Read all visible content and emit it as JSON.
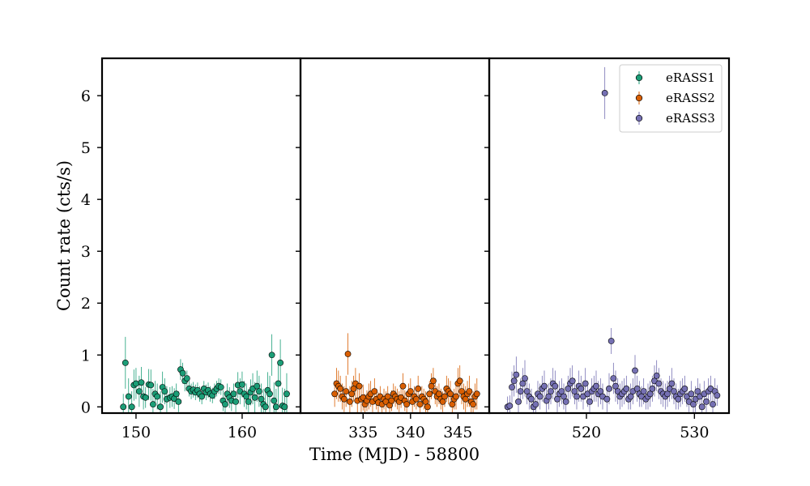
{
  "chart_data": {
    "type": "scatter",
    "xlabel": "Time (MJD) - 58800",
    "ylabel": "Count rate (cts/s)",
    "ylim": [
      -0.12,
      6.72
    ],
    "yticks": [
      0,
      1,
      2,
      3,
      4,
      5,
      6
    ],
    "grid": false,
    "legend_position": "top-right",
    "legend": [
      "eRASS1",
      "eRASS2",
      "eRASS3"
    ],
    "panels": [
      {
        "xlim": [
          146.8,
          165.5
        ],
        "xticks": [
          150,
          160
        ],
        "series": {
          "name": "eRASS1",
          "color": "#1b9e77",
          "x": [
            148.8,
            149.0,
            149.3,
            149.6,
            149.8,
            150.0,
            150.3,
            150.5,
            150.7,
            150.9,
            151.2,
            151.4,
            151.6,
            151.8,
            152.0,
            152.3,
            152.5,
            152.7,
            152.9,
            153.2,
            153.4,
            153.6,
            153.8,
            154.0,
            154.2,
            154.4,
            154.6,
            154.8,
            155.0,
            155.2,
            155.4,
            155.6,
            155.8,
            156.0,
            156.2,
            156.4,
            156.6,
            156.8,
            157.0,
            157.2,
            157.4,
            157.6,
            157.8,
            158.0,
            158.2,
            158.4,
            158.6,
            158.8,
            159.0,
            159.2,
            159.4,
            159.6,
            159.8,
            160.0,
            160.2,
            160.4,
            160.6,
            160.8,
            161.0,
            161.2,
            161.4,
            161.6,
            161.8,
            162.0,
            162.2,
            162.4,
            162.6,
            162.8,
            163.0,
            163.2,
            163.4,
            163.6,
            163.8,
            164.0,
            164.2
          ],
          "y": [
            0.0,
            0.85,
            0.2,
            0.0,
            0.42,
            0.45,
            0.3,
            0.47,
            0.2,
            0.18,
            0.43,
            0.42,
            0.05,
            0.25,
            0.2,
            0.0,
            0.38,
            0.3,
            0.15,
            0.18,
            0.2,
            0.16,
            0.25,
            0.1,
            0.72,
            0.65,
            0.5,
            0.55,
            0.35,
            0.3,
            0.33,
            0.28,
            0.32,
            0.25,
            0.2,
            0.35,
            0.28,
            0.32,
            0.25,
            0.22,
            0.3,
            0.35,
            0.4,
            0.38,
            0.12,
            0.05,
            0.25,
            0.18,
            0.12,
            0.25,
            0.1,
            0.42,
            0.3,
            0.43,
            0.25,
            0.2,
            0.1,
            0.28,
            0.35,
            0.18,
            0.4,
            0.3,
            0.15,
            0.05,
            0.0,
            0.32,
            0.25,
            1.0,
            0.12,
            0.0,
            0.45,
            0.85,
            0.02,
            0.0,
            0.25
          ],
          "err": [
            0.25,
            0.5,
            0.35,
            0.3,
            0.3,
            0.3,
            0.3,
            0.3,
            0.25,
            0.2,
            0.3,
            0.3,
            0.3,
            0.25,
            0.25,
            0.3,
            0.3,
            0.25,
            0.25,
            0.2,
            0.2,
            0.2,
            0.2,
            0.2,
            0.2,
            0.2,
            0.2,
            0.15,
            0.15,
            0.15,
            0.15,
            0.15,
            0.15,
            0.15,
            0.15,
            0.15,
            0.15,
            0.15,
            0.15,
            0.15,
            0.15,
            0.15,
            0.15,
            0.15,
            0.2,
            0.2,
            0.2,
            0.2,
            0.2,
            0.2,
            0.2,
            0.25,
            0.25,
            0.25,
            0.25,
            0.25,
            0.25,
            0.25,
            0.3,
            0.3,
            0.3,
            0.3,
            0.3,
            0.3,
            0.3,
            0.35,
            0.35,
            0.4,
            0.35,
            0.35,
            0.4,
            0.45,
            0.35,
            0.35,
            0.4
          ]
        }
      },
      {
        "xlim": [
          328.4,
          348.3
        ],
        "xticks": [
          335,
          340,
          345
        ],
        "series": {
          "name": "eRASS2",
          "color": "#d95f02",
          "x": [
            332.0,
            332.2,
            332.4,
            332.6,
            332.8,
            333.0,
            333.2,
            333.4,
            333.6,
            333.8,
            334.0,
            334.2,
            334.4,
            334.6,
            334.8,
            335.0,
            335.2,
            335.4,
            335.6,
            335.8,
            336.0,
            336.2,
            336.4,
            336.6,
            336.8,
            337.0,
            337.2,
            337.4,
            337.6,
            337.8,
            338.0,
            338.2,
            338.4,
            338.6,
            338.8,
            339.0,
            339.2,
            339.4,
            339.6,
            339.8,
            340.0,
            340.2,
            340.4,
            340.6,
            340.8,
            341.0,
            341.2,
            341.4,
            341.6,
            341.8,
            342.0,
            342.2,
            342.4,
            342.6,
            342.8,
            343.0,
            343.2,
            343.4,
            343.6,
            343.8,
            344.0,
            344.2,
            344.4,
            344.6,
            344.8,
            345.0,
            345.2,
            345.4,
            345.6,
            345.8,
            346.0,
            346.2,
            346.4,
            346.6,
            346.8,
            347.0
          ],
          "y": [
            0.25,
            0.45,
            0.4,
            0.35,
            0.2,
            0.15,
            0.3,
            1.02,
            0.1,
            0.25,
            0.35,
            0.45,
            0.12,
            0.4,
            0.15,
            0.18,
            0.05,
            0.12,
            0.2,
            0.25,
            0.1,
            0.3,
            0.15,
            0.08,
            0.2,
            0.05,
            0.15,
            0.1,
            0.2,
            0.03,
            0.12,
            0.25,
            0.2,
            0.15,
            0.1,
            0.18,
            0.4,
            0.12,
            0.05,
            0.25,
            0.3,
            0.1,
            0.2,
            0.15,
            0.35,
            0.05,
            0.2,
            0.15,
            0.1,
            0.0,
            0.25,
            0.4,
            0.5,
            0.3,
            0.2,
            0.25,
            0.15,
            0.1,
            0.2,
            0.35,
            0.3,
            0.25,
            0.05,
            0.15,
            0.2,
            0.45,
            0.5,
            0.3,
            0.2,
            0.15,
            0.25,
            0.3,
            0.1,
            0.05,
            0.2,
            0.25
          ],
          "err": [
            0.25,
            0.3,
            0.3,
            0.25,
            0.25,
            0.25,
            0.3,
            0.4,
            0.3,
            0.25,
            0.25,
            0.3,
            0.25,
            0.25,
            0.25,
            0.25,
            0.2,
            0.2,
            0.25,
            0.25,
            0.2,
            0.25,
            0.2,
            0.2,
            0.2,
            0.2,
            0.2,
            0.2,
            0.2,
            0.2,
            0.2,
            0.2,
            0.2,
            0.2,
            0.2,
            0.2,
            0.25,
            0.2,
            0.2,
            0.2,
            0.25,
            0.2,
            0.2,
            0.2,
            0.25,
            0.2,
            0.2,
            0.2,
            0.2,
            0.2,
            0.25,
            0.25,
            0.25,
            0.25,
            0.2,
            0.2,
            0.2,
            0.2,
            0.2,
            0.25,
            0.25,
            0.25,
            0.2,
            0.2,
            0.25,
            0.3,
            0.3,
            0.25,
            0.25,
            0.25,
            0.25,
            0.3,
            0.25,
            0.25,
            0.25,
            0.3
          ]
        }
      },
      {
        "xlim": [
          511.0,
          533.2
        ],
        "xticks": [
          520,
          530
        ],
        "series": {
          "name": "eRASS3",
          "color": "#7570b3",
          "x": [
            512.7,
            512.9,
            513.1,
            513.3,
            513.5,
            513.7,
            513.9,
            514.1,
            514.3,
            514.5,
            514.7,
            514.9,
            515.1,
            515.3,
            515.5,
            515.7,
            515.9,
            516.1,
            516.3,
            516.5,
            516.7,
            516.9,
            517.1,
            517.3,
            517.5,
            517.7,
            517.9,
            518.1,
            518.3,
            518.5,
            518.7,
            518.9,
            519.1,
            519.3,
            519.5,
            519.7,
            519.9,
            520.1,
            520.3,
            520.5,
            520.7,
            520.9,
            521.1,
            521.3,
            521.5,
            521.7,
            521.9,
            522.1,
            522.3,
            522.5,
            522.7,
            522.9,
            523.1,
            523.3,
            523.5,
            523.7,
            523.9,
            524.1,
            524.3,
            524.5,
            524.7,
            524.9,
            525.1,
            525.3,
            525.5,
            525.7,
            525.9,
            526.1,
            526.3,
            526.5,
            526.7,
            526.9,
            527.1,
            527.3,
            527.5,
            527.7,
            527.9,
            528.1,
            528.3,
            528.5,
            528.7,
            528.9,
            529.1,
            529.3,
            529.5,
            529.7,
            529.9,
            530.1,
            530.3,
            530.5,
            530.7,
            530.9,
            531.1,
            531.3,
            531.5,
            531.7,
            531.9,
            532.1
          ],
          "y": [
            0.0,
            0.02,
            0.38,
            0.5,
            0.62,
            0.1,
            0.3,
            0.45,
            0.55,
            0.3,
            0.2,
            0.15,
            0.0,
            0.05,
            0.25,
            0.2,
            0.35,
            0.4,
            0.12,
            0.2,
            0.3,
            0.45,
            0.4,
            0.15,
            0.25,
            0.3,
            0.2,
            0.1,
            0.35,
            0.45,
            0.5,
            0.3,
            0.2,
            0.4,
            0.35,
            0.2,
            0.45,
            0.25,
            0.1,
            0.3,
            0.35,
            0.4,
            0.25,
            0.3,
            0.2,
            6.05,
            0.15,
            0.35,
            1.27,
            0.55,
            0.4,
            0.3,
            0.2,
            0.25,
            0.3,
            0.35,
            0.15,
            0.2,
            0.3,
            0.7,
            0.35,
            0.25,
            0.2,
            0.3,
            0.15,
            0.2,
            0.25,
            0.35,
            0.5,
            0.6,
            0.45,
            0.3,
            0.25,
            0.2,
            0.25,
            0.35,
            0.45,
            0.3,
            0.2,
            0.15,
            0.25,
            0.3,
            0.35,
            0.2,
            0.1,
            0.25,
            0.05,
            0.15,
            0.3,
            0.2,
            0.0,
            0.25,
            0.1,
            0.3,
            0.35,
            0.05,
            0.3,
            0.22
          ],
          "err": [
            0.2,
            0.2,
            0.3,
            0.3,
            0.35,
            0.25,
            0.25,
            0.3,
            0.35,
            0.25,
            0.25,
            0.2,
            0.2,
            0.2,
            0.25,
            0.25,
            0.25,
            0.3,
            0.25,
            0.25,
            0.25,
            0.3,
            0.3,
            0.25,
            0.25,
            0.25,
            0.25,
            0.2,
            0.25,
            0.3,
            0.3,
            0.25,
            0.25,
            0.3,
            0.25,
            0.25,
            0.3,
            0.25,
            0.2,
            0.25,
            0.25,
            0.3,
            0.25,
            0.25,
            0.25,
            0.5,
            0.25,
            0.3,
            0.25,
            0.3,
            0.3,
            0.25,
            0.25,
            0.25,
            0.25,
            0.25,
            0.2,
            0.25,
            0.25,
            0.3,
            0.25,
            0.25,
            0.2,
            0.25,
            0.2,
            0.25,
            0.25,
            0.25,
            0.3,
            0.3,
            0.3,
            0.25,
            0.25,
            0.25,
            0.25,
            0.25,
            0.3,
            0.25,
            0.25,
            0.2,
            0.25,
            0.25,
            0.25,
            0.2,
            0.2,
            0.25,
            0.2,
            0.25,
            0.25,
            0.25,
            0.2,
            0.25,
            0.2,
            0.25,
            0.25,
            0.2,
            0.25,
            0.2
          ]
        }
      }
    ]
  }
}
